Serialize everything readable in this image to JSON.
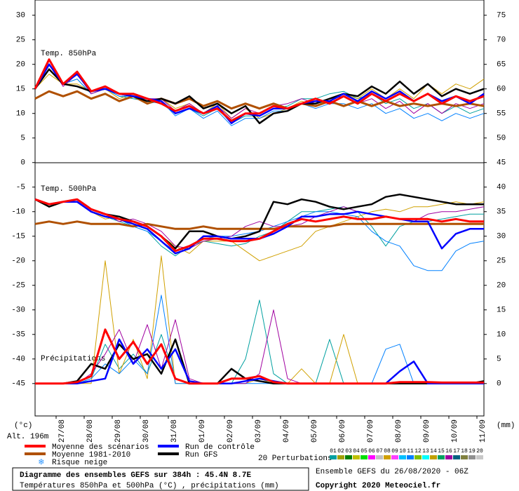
{
  "chart_data": {
    "type": "line",
    "title": "Diagramme des ensembles GEFS sur 384h : 45.4N 8.7E",
    "subtitle": "Températures 850hPa et 500hPa (°C) , précipitations (mm)",
    "run_info": "Ensemble GEFS du 26/08/2020 - 06Z",
    "copyright": "Copyright 2020 Meteociel.fr",
    "altitude": "Alt. 196m",
    "y_label": "(°c)",
    "y2_label": "(mm)",
    "labels": {
      "t850": "Temp. 850hPa",
      "t500": "Temp. 500hPa",
      "precip": "Précipitations"
    },
    "precip_axis": "y2",
    "snow_label": "Risque neige",
    "perturbations_label": "20 Perturbations",
    "x": [
      0,
      12,
      24,
      36,
      48,
      60,
      72,
      84,
      96,
      108,
      120,
      132,
      144,
      156,
      168,
      180,
      192,
      204,
      216,
      228,
      240,
      252,
      264,
      276,
      288,
      300,
      312,
      324,
      336,
      348,
      360,
      372,
      384
    ],
    "xlim": [
      0,
      384
    ],
    "xticks": [
      {
        "value": 18,
        "label": "27/08"
      },
      {
        "value": 42,
        "label": "28/08"
      },
      {
        "value": 66,
        "label": "29/08"
      },
      {
        "value": 90,
        "label": "30/08"
      },
      {
        "value": 114,
        "label": "31/08"
      },
      {
        "value": 138,
        "label": "01/09"
      },
      {
        "value": 162,
        "label": "02/09"
      },
      {
        "value": 186,
        "label": "03/09"
      },
      {
        "value": 210,
        "label": "04/09"
      },
      {
        "value": 234,
        "label": "05/09"
      },
      {
        "value": 258,
        "label": "06/09"
      },
      {
        "value": 282,
        "label": "07/09"
      },
      {
        "value": 306,
        "label": "08/09"
      },
      {
        "value": 330,
        "label": "09/09"
      },
      {
        "value": 354,
        "label": "10/09"
      },
      {
        "value": 378,
        "label": "11/09"
      }
    ],
    "ylim": [
      -51.6,
      33.1
    ],
    "yticks": [
      30,
      25,
      20,
      15,
      10,
      5,
      0,
      -5,
      -10,
      -15,
      -20,
      -25,
      -30,
      -35,
      -40,
      -45
    ],
    "y2lim": [
      -6.6,
      78.1
    ],
    "y2ticks": [
      75,
      70,
      65,
      60,
      55,
      50,
      45,
      40,
      35,
      30,
      25,
      20,
      15,
      10,
      5,
      0
    ],
    "series": [
      {
        "name": "Moyenne des scénarios",
        "color": "#ff0000",
        "t850": [
          15,
          21,
          16,
          18.5,
          14.5,
          15.5,
          14,
          14,
          13,
          12,
          10.5,
          11.5,
          10,
          11,
          8.5,
          10,
          10,
          11.5,
          11,
          12,
          13,
          12,
          13.5,
          12,
          14,
          12.5,
          14,
          12.5,
          14,
          12,
          13.5,
          12.5,
          13.5
        ],
        "t500": [
          -7.5,
          -8.5,
          -8,
          -7.5,
          -9.5,
          -10.5,
          -11.5,
          -12,
          -13,
          -15,
          -18,
          -17,
          -15.5,
          -15.5,
          -16,
          -16,
          -15.5,
          -14,
          -12.5,
          -11.5,
          -12,
          -11.5,
          -11,
          -11.5,
          -11.5,
          -11,
          -11.5,
          -11.5,
          -11.5,
          -12,
          -11.5,
          -12,
          -12
        ],
        "precip": [
          0,
          0,
          0,
          0.3,
          1.5,
          11,
          5,
          8.5,
          4,
          8,
          1,
          0,
          0,
          0,
          1,
          1,
          1.5,
          0.3,
          0,
          0,
          0,
          0,
          0,
          0,
          0,
          0,
          0.3,
          0.3,
          0.3,
          0.2,
          0.2,
          0.2,
          0.2
        ]
      },
      {
        "name": "Moyenne 1981-2010",
        "color": "#b05000",
        "t850": [
          13,
          14.5,
          13.5,
          14.5,
          13,
          14,
          12.5,
          13.5,
          12,
          13,
          12,
          13,
          11.5,
          12.5,
          11,
          12,
          11,
          12,
          11,
          12,
          11.5,
          12.5,
          11.5,
          12.5,
          11.5,
          12.5,
          11.5,
          12,
          11.5,
          12,
          11.5,
          12,
          11.5
        ],
        "t500": [
          -12.5,
          -12,
          -12.5,
          -12,
          -12.5,
          -12.5,
          -12.5,
          -13,
          -12.5,
          -13,
          -13.5,
          -13.5,
          -13,
          -13.5,
          -13.5,
          -13.5,
          -13.5,
          -13.5,
          -13,
          -13,
          -13,
          -13,
          -12.5,
          -12.5,
          -12.5,
          -12.5,
          -12.5,
          -12.5,
          -12.5,
          -12.5,
          -12.5,
          -12.5,
          -12.5
        ]
      },
      {
        "name": "Run de contrôle",
        "color": "#0000ff",
        "t850": [
          15,
          20,
          16,
          18,
          14.5,
          15,
          14,
          13.5,
          13,
          12.5,
          10,
          11,
          10,
          11.5,
          8,
          10,
          9.5,
          11,
          11,
          12,
          12.5,
          12.5,
          14,
          12.5,
          14.5,
          13,
          14.5,
          12.5,
          14,
          12.5,
          13.5,
          12,
          14
        ],
        "t500": [
          -7.5,
          -8.5,
          -8,
          -8,
          -10,
          -11,
          -11.5,
          -12.5,
          -13.5,
          -16,
          -18.5,
          -17.5,
          -15,
          -15,
          -15.5,
          -15.5,
          -15.5,
          -14.5,
          -13,
          -11,
          -11,
          -10.5,
          -10.5,
          -10,
          -10.5,
          -11,
          -11.5,
          -12,
          -12,
          -17.5,
          -14.5,
          -13.5,
          -13.5
        ],
        "precip": [
          0,
          0,
          0,
          0,
          0.5,
          1,
          9,
          4,
          7,
          3,
          7,
          0.5,
          0,
          0,
          0,
          0.5,
          1,
          0.5,
          0,
          0,
          0,
          0,
          0,
          0,
          0,
          0,
          2.5,
          4.5,
          0,
          0,
          0,
          0,
          0
        ]
      },
      {
        "name": "Run GFS",
        "color": "#000000",
        "t850": [
          15,
          19,
          16,
          15.5,
          14.5,
          15,
          14,
          13.5,
          12.5,
          13,
          12,
          13.5,
          11,
          12,
          10,
          11.5,
          8,
          10,
          10.5,
          12,
          12,
          13,
          14,
          13.5,
          15.5,
          14,
          16.5,
          14,
          16,
          13.5,
          15,
          14,
          15
        ],
        "t500": [
          -7.5,
          -9,
          -8,
          -7.5,
          -9.5,
          -10.5,
          -11,
          -12,
          -13,
          -15,
          -17.5,
          -14,
          -14,
          -15,
          -15.5,
          -15,
          -14,
          -8,
          -8.5,
          -7.5,
          -8,
          -9,
          -9.5,
          -9,
          -8.5,
          -7,
          -6.5,
          -7,
          -7.5,
          -8,
          -8.5,
          -8.5,
          -8.5
        ],
        "precip": [
          0,
          0,
          0,
          0.5,
          4,
          3,
          8,
          5,
          6,
          2,
          9,
          0,
          0,
          0,
          3,
          1,
          0.5,
          0,
          0,
          0,
          0,
          0,
          0,
          0,
          0,
          0,
          0,
          0,
          0,
          0,
          0,
          0,
          0.5
        ]
      }
    ],
    "perturbations": [
      {
        "name": "01",
        "color": "#00a0a0",
        "t850": [
          15,
          19,
          16,
          17,
          14,
          15,
          13.5,
          13,
          12.5,
          12,
          10,
          11,
          9.5,
          11,
          8,
          9.5,
          9.5,
          11,
          11.5,
          13,
          13,
          14,
          14.5,
          13,
          14,
          12,
          13,
          11,
          12,
          10,
          11.5,
          10,
          11
        ],
        "t500": [
          -7.5,
          -8.5,
          -8,
          -8,
          -10,
          -11,
          -12,
          -13,
          -14,
          -17,
          -19,
          -17,
          -16,
          -16.5,
          -17,
          -16.5,
          -15,
          -14,
          -12,
          -10,
          -10,
          -9.5,
          -9,
          -10,
          -13,
          -17,
          -13,
          -12,
          -12,
          -11.5,
          -11,
          -10.5,
          -10.5
        ],
        "precip": [
          0,
          0,
          0,
          0,
          1,
          8,
          3,
          6,
          2,
          10,
          1,
          0,
          0,
          0,
          0,
          5,
          17,
          2,
          0,
          0,
          0,
          9,
          0,
          0,
          0,
          0,
          0,
          0,
          0,
          0,
          0,
          0,
          0
        ]
      },
      {
        "name": "02",
        "color": "#a0a000"
      },
      {
        "name": "03",
        "color": "#008000"
      },
      {
        "name": "04",
        "color": "#c0c000"
      },
      {
        "name": "05",
        "color": "#00e000"
      },
      {
        "name": "06",
        "color": "#ff00ff"
      },
      {
        "name": "07",
        "color": "#c0c0c0"
      },
      {
        "name": "08",
        "color": "#d0a000",
        "t850": [
          15,
          18,
          16,
          16,
          14.5,
          15,
          13,
          14,
          12,
          13,
          11,
          12,
          10,
          12,
          9,
          11,
          9,
          10,
          11,
          12.5,
          11.5,
          13,
          14,
          13,
          15,
          13,
          15,
          13,
          16,
          14,
          16,
          15,
          17
        ],
        "t500": [
          -7.5,
          -8.5,
          -8,
          -8,
          -10,
          -11.5,
          -11,
          -12.5,
          -13,
          -15,
          -17,
          -18.5,
          -16,
          -16,
          -16,
          -18,
          -20,
          -19,
          -18,
          -17,
          -14,
          -13,
          -12,
          -11,
          -10,
          -9.5,
          -10,
          -9,
          -9,
          -8.5,
          -8,
          -8.5,
          -8
        ],
        "precip": [
          0,
          0,
          0,
          0,
          0,
          25,
          2,
          9,
          1,
          26,
          0,
          0,
          0,
          0,
          0,
          0,
          1,
          0,
          0,
          3,
          0,
          0,
          10,
          0,
          0,
          0,
          0,
          0,
          0,
          0,
          0,
          0,
          0
        ]
      },
      {
        "name": "09",
        "color": "#ff40ff"
      },
      {
        "name": "10",
        "color": "#00c0ff"
      },
      {
        "name": "11",
        "color": "#0080ff",
        "t850": [
          15,
          19,
          16,
          17,
          14,
          15,
          13.5,
          13.5,
          12,
          12.5,
          9.5,
          11,
          9,
          10.5,
          7.5,
          9,
          9,
          10.5,
          10.5,
          12,
          11,
          12,
          12,
          11,
          12,
          10,
          11,
          9,
          10,
          8.5,
          10,
          9,
          10
        ],
        "t500": [
          -7.5,
          -8.5,
          -8,
          -8,
          -10,
          -11,
          -11.5,
          -13,
          -14,
          -16,
          -18,
          -17,
          -15.5,
          -15,
          -15,
          -14.5,
          -14,
          -13,
          -12,
          -11,
          -10,
          -10,
          -10.5,
          -11,
          -14,
          -16,
          -17,
          -21,
          -22,
          -22,
          -18,
          -16.5,
          -16
        ],
        "precip": [
          0,
          0,
          0,
          0,
          1,
          4,
          2,
          5,
          2,
          18,
          0,
          0,
          0,
          0,
          0,
          0,
          0,
          0,
          0,
          0,
          0,
          0,
          0,
          0,
          0,
          7,
          8,
          0,
          0,
          0,
          0,
          0,
          0
        ]
      },
      {
        "name": "12",
        "color": "#80c000"
      },
      {
        "name": "13",
        "color": "#00ffff"
      },
      {
        "name": "14",
        "color": "#c0a000"
      },
      {
        "name": "15",
        "color": "#00a060"
      },
      {
        "name": "16",
        "color": "#a000a0",
        "t850": [
          15,
          20,
          15.5,
          18,
          14,
          15,
          14,
          14,
          13,
          13,
          10.5,
          12,
          10,
          11.5,
          9,
          11,
          10,
          11.5,
          12,
          13,
          12,
          13,
          13.5,
          12,
          13,
          11,
          12.5,
          10,
          12,
          10,
          12,
          11,
          12
        ],
        "t500": [
          -7.5,
          -8.5,
          -8,
          -7.5,
          -9.5,
          -10.5,
          -12,
          -11.5,
          -12.5,
          -14,
          -17,
          -17.5,
          -16,
          -15.5,
          -15,
          -13,
          -12,
          -13,
          -13,
          -12.5,
          -11,
          -10,
          -9,
          -10,
          -10.5,
          -11,
          -11.5,
          -12,
          -10.5,
          -10,
          -10,
          -9.5,
          -9
        ],
        "precip": [
          0,
          0,
          0,
          0,
          2,
          6,
          11,
          4,
          12,
          3,
          13,
          1,
          0,
          0,
          0,
          0,
          2,
          15,
          1,
          0,
          0,
          0,
          0,
          0,
          0,
          0,
          0,
          0,
          0,
          0,
          0,
          0,
          0
        ]
      },
      {
        "name": "17",
        "color": "#006080"
      },
      {
        "name": "18",
        "color": "#808040"
      },
      {
        "name": "19",
        "color": "#909090"
      },
      {
        "name": "20",
        "color": "#c8c8c8"
      }
    ]
  }
}
